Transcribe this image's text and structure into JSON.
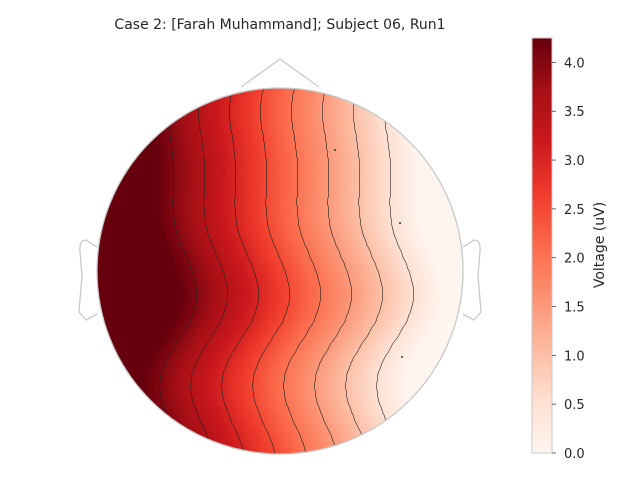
{
  "chart_data": {
    "type": "heatmap",
    "subtype": "scalp-topomap",
    "title": "Case 2:  [Farah Muhammand]; Subject 06, Run1",
    "colorbar": {
      "label": "Voltage (uV)",
      "range": [
        0.0,
        4.25
      ],
      "ticks": [
        0.0,
        0.5,
        1.0,
        1.5,
        2.0,
        2.5,
        3.0,
        3.5,
        4.0
      ],
      "tick_labels": [
        "0.0",
        "0.5",
        "1.0",
        "1.5",
        "2.0",
        "2.5",
        "3.0",
        "3.5",
        "4.0"
      ],
      "colormap": "Reds",
      "colormap_stops": [
        "#fff5f0",
        "#fee0d2",
        "#fcbba1",
        "#fc9272",
        "#fb6a4a",
        "#ef3b2c",
        "#cb181d",
        "#a50f15",
        "#67000d"
      ]
    },
    "gradient_direction": "left-high to right-low",
    "contour_levels": [
      0.5,
      1.0,
      1.5,
      2.0,
      2.5,
      3.0,
      3.5,
      4.0
    ],
    "head_outline_color": "#c8c8c8"
  }
}
